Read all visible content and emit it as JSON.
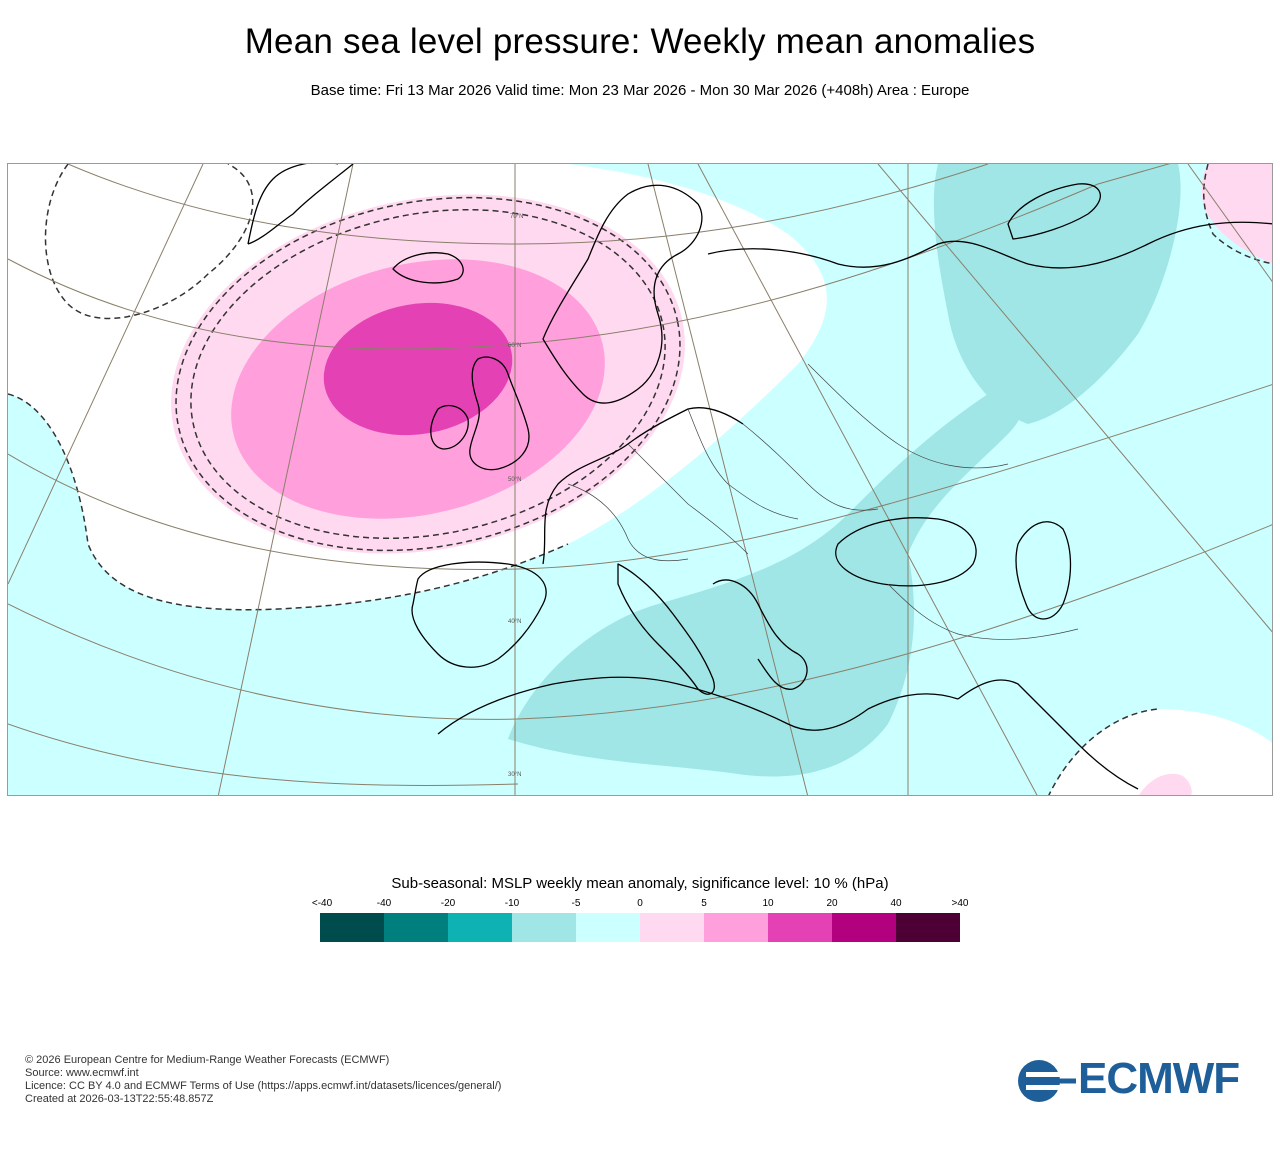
{
  "header": {
    "title": "Mean sea level pressure: Weekly mean anomalies",
    "subtitle": "Base time: Fri 13 Mar 2026 Valid time: Mon 23 Mar 2026 - Mon 30 Mar 2026 (+408h) Area : Europe"
  },
  "map": {
    "latitude_labels": [
      "70°N",
      "60°N",
      "50°N",
      "40°N",
      "30°N"
    ],
    "colors": {
      "ocean_neutral": "#ccffff",
      "anomaly_neg5": "#a0e6e6",
      "anomaly_pos0": "#ffd9f0",
      "anomaly_pos5": "#ff9fdc",
      "anomaly_pos10": "#e442b4",
      "significance_region": "#ffffff",
      "coastline": "#000000",
      "graticule": "#8a7f6a"
    }
  },
  "legend": {
    "title": "Sub-seasonal: MSLP weekly mean anomaly, significance level: 10 % (hPa)",
    "ticks": [
      "<-40",
      "-40",
      "-20",
      "-10",
      "-5",
      "0",
      "5",
      "10",
      "20",
      "40",
      ">40"
    ],
    "swatches": [
      "#004c4c",
      "#007f7f",
      "#0fb2b2",
      "#a0e6e6",
      "#ccffff",
      "#ffd9f0",
      "#ff9fdc",
      "#e442b4",
      "#b3007f",
      "#4c0033"
    ]
  },
  "footer": {
    "copyright": "© 2026 European Centre for Medium-Range Weather Forecasts (ECMWF)",
    "source": "Source: www.ecmwf.int",
    "licence": "Licence: CC BY 4.0 and ECMWF Terms of Use (https://apps.ecmwf.int/datasets/licences/general/)",
    "created": "Created at 2026-03-13T22:55:48.857Z"
  },
  "logo": {
    "text": "ECMWF",
    "color": "#1f5f99"
  }
}
